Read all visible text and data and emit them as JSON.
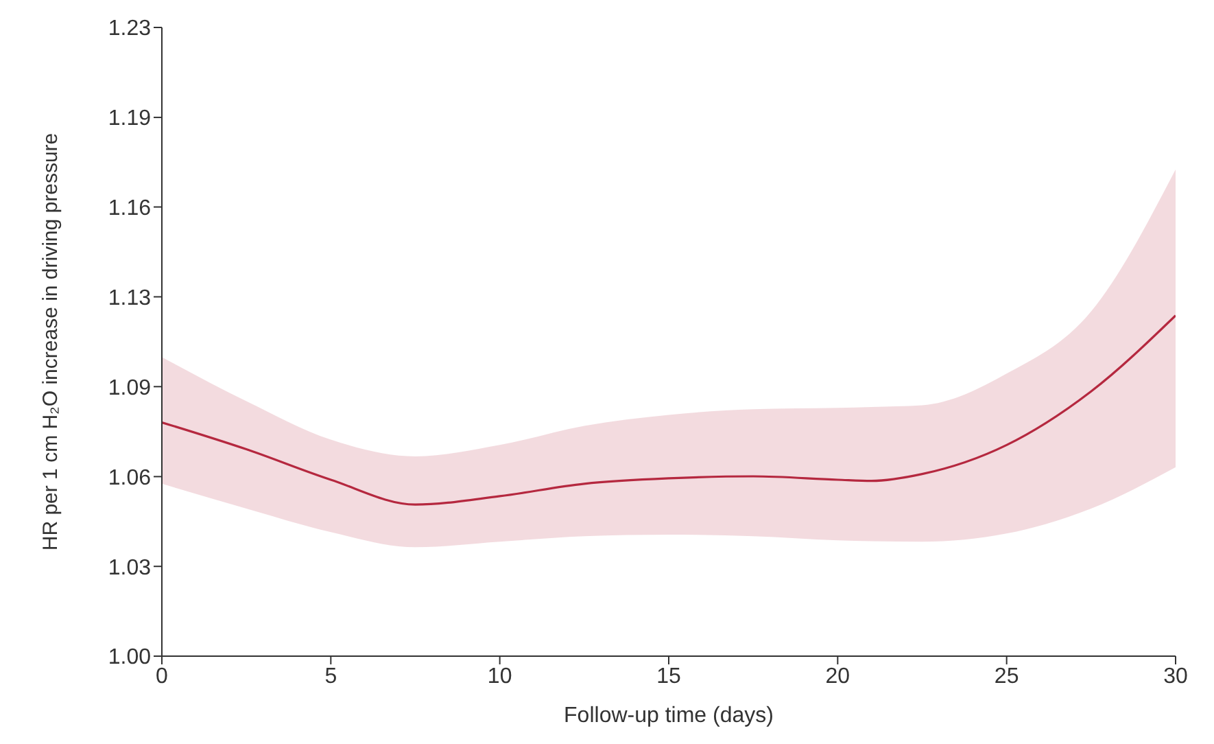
{
  "chart_data": {
    "type": "line",
    "xlabel": "Follow-up time (days)",
    "ylabel": "HR per 1 cm H₂O increase in driving pressure",
    "x": [
      0,
      2.5,
      5,
      7.5,
      10,
      12.5,
      15,
      17.5,
      20,
      21,
      22.5,
      25,
      27.5,
      30
    ],
    "series": [
      {
        "color": "#b5283f",
        "values": [
          1.08,
          1.0705,
          1.0598,
          1.0512,
          1.0541,
          1.0584,
          1.0603,
          1.061,
          1.0598,
          1.0594,
          1.0618,
          1.072,
          1.0911,
          1.1187
        ],
        "lower": [
          1.0584,
          1.0498,
          1.0417,
          1.0365,
          1.0384,
          1.0403,
          1.0408,
          1.0403,
          1.0389,
          1.0386,
          1.0384,
          1.0412,
          1.0498,
          1.0642
        ],
        "upper": [
          1.1035,
          1.0876,
          1.0739,
          1.068,
          1.072,
          1.0788,
          1.0827,
          1.0847,
          1.0852,
          1.0855,
          1.0861,
          1.0975,
          1.1202,
          1.1738
        ]
      }
    ],
    "log": true,
    "grid": false,
    "marker": "none",
    "line_style": "solid",
    "xlim": [
      0,
      30
    ],
    "xticks": [
      0,
      5,
      10,
      15,
      20,
      25,
      30
    ],
    "ylim": [
      1,
      1.23
    ],
    "yticks": [
      {
        "value": 1,
        "label": "1.00"
      },
      {
        "value": 1.03,
        "label": "1.03"
      },
      {
        "value": 1.0609,
        "label": "1.06"
      },
      {
        "value": 1.0928,
        "label": "1.09"
      },
      {
        "value": 1.1256,
        "label": "1.13"
      },
      {
        "value": 1.1594,
        "label": "1.16"
      },
      {
        "value": 1.1941,
        "label": "1.19"
      },
      {
        "value": 1.23,
        "label": "1.23"
      }
    ]
  }
}
